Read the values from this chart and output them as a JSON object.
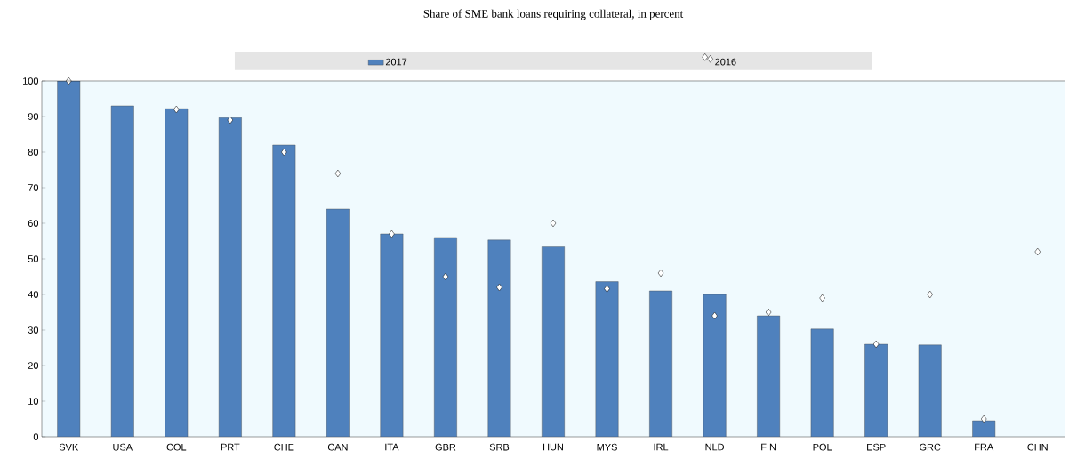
{
  "chart_data": {
    "type": "bar",
    "title": "Share of SME bank loans requiring collateral, in percent",
    "categories": [
      "SVK",
      "USA",
      "COL",
      "PRT",
      "CHE",
      "CAN",
      "ITA",
      "GBR",
      "SRB",
      "HUN",
      "MYS",
      "IRL",
      "NLD",
      "FIN",
      "POL",
      "ESP",
      "GRC",
      "FRA",
      "CHN"
    ],
    "series": [
      {
        "name": "2017",
        "color": "#4f81bd",
        "values": [
          100,
          93,
          92.2,
          89.7,
          82,
          64,
          57,
          56,
          55.3,
          53.4,
          43.6,
          41,
          40,
          34,
          30.3,
          26,
          25.8,
          4.5,
          null
        ]
      },
      {
        "name": "2016",
        "type": "scatter",
        "marker": "diamond",
        "color": "#ffffff",
        "values": [
          100,
          null,
          92,
          89,
          80,
          74,
          57,
          45,
          42,
          60,
          41.6,
          46,
          34,
          35,
          39,
          26,
          40,
          5,
          52
        ]
      }
    ],
    "ylim": [
      0,
      100
    ],
    "yticks": [
      0,
      10,
      20,
      30,
      40,
      50,
      60,
      70,
      80,
      90,
      100
    ],
    "legend": "top"
  }
}
